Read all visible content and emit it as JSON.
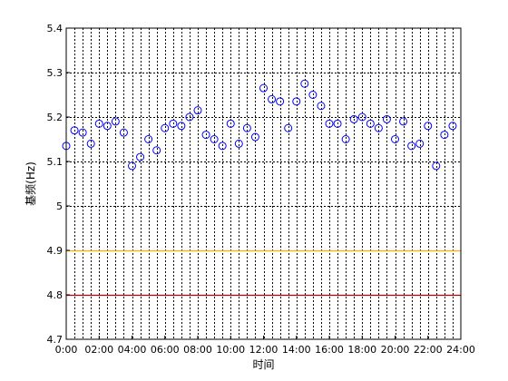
{
  "chart_data": {
    "type": "scatter",
    "title": "",
    "xlabel": "时间",
    "ylabel": "基频(Hz)",
    "xlim": [
      0,
      24
    ],
    "ylim": [
      4.7,
      5.4
    ],
    "x_ticks": [
      0,
      2,
      4,
      6,
      8,
      10,
      12,
      14,
      16,
      18,
      20,
      22,
      24
    ],
    "x_tick_labels": [
      "0:00",
      "02:00",
      "04:00",
      "06:00",
      "08:00",
      "10:00",
      "12:00",
      "14:00",
      "16:00",
      "18:00",
      "20:00",
      "22:00",
      "24:00"
    ],
    "y_ticks": [
      4.7,
      4.8,
      4.9,
      5.0,
      5.1,
      5.2,
      5.3,
      5.4
    ],
    "y_tick_labels": [
      "4.7",
      "4.8",
      "4.9",
      "5",
      "5.1",
      "5.2",
      "5.3",
      "5.4"
    ],
    "grid": true,
    "grid_style": "dotted",
    "grid_minor_x_step": 0.5,
    "marker": "open-circle",
    "series": [
      {
        "color": "#0000ff",
        "x": [
          0,
          0.5,
          1,
          1.5,
          2,
          2.5,
          3,
          3.5,
          4,
          4.5,
          5,
          5.5,
          6,
          6.5,
          7,
          7.5,
          8,
          8.5,
          9,
          9.5,
          10,
          10.5,
          11,
          11.5,
          12,
          12.5,
          13,
          13.5,
          14,
          14.5,
          15,
          15.5,
          16,
          16.5,
          17,
          17.5,
          18,
          18.5,
          19,
          19.5,
          20,
          20.5,
          21,
          21.5,
          22,
          22.5,
          23,
          23.5
        ],
        "y": [
          5.135,
          5.17,
          5.165,
          5.14,
          5.185,
          5.18,
          5.19,
          5.165,
          5.09,
          5.11,
          5.15,
          5.125,
          5.175,
          5.185,
          5.18,
          5.2,
          5.215,
          5.16,
          5.15,
          5.135,
          5.185,
          5.14,
          5.175,
          5.155,
          5.265,
          5.24,
          5.235,
          5.175,
          5.235,
          5.275,
          5.25,
          5.225,
          5.185,
          5.185,
          5.15,
          5.195,
          5.2,
          5.185,
          5.175,
          5.195,
          5.15,
          5.19,
          5.135,
          5.14,
          5.18,
          5.09,
          5.16,
          5.18
        ]
      }
    ],
    "reference_lines": [
      {
        "y": 4.9,
        "color": "#ffb000"
      },
      {
        "y": 4.8,
        "color": "#c00000"
      }
    ]
  }
}
